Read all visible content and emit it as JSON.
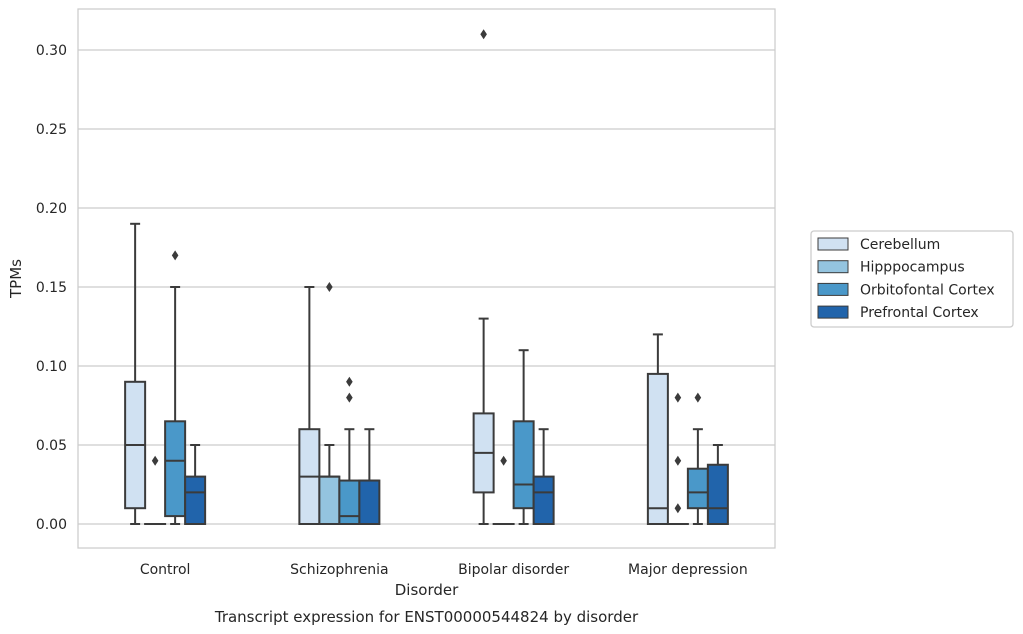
{
  "chart_data": {
    "type": "box",
    "title": "",
    "caption": "Transcript expression for ENST00000544824 by disorder",
    "xlabel": "Disorder",
    "ylabel": "TPMs",
    "ylim": [
      -0.015,
      0.325
    ],
    "yticks": [
      "0.00",
      "0.05",
      "0.10",
      "0.15",
      "0.20",
      "0.25",
      "0.30"
    ],
    "ytick_values": [
      0.0,
      0.05,
      0.1,
      0.15,
      0.2,
      0.25,
      0.3
    ],
    "grid": true,
    "legend_position": "right",
    "categories": [
      "Control",
      "Schizophrenia",
      "Bipolar disorder",
      "Major depression"
    ],
    "series": [
      {
        "name": "Cerebellum",
        "color": "#d0e1f2",
        "boxes": [
          {
            "min": 0.0,
            "q1": 0.01,
            "median": 0.05,
            "q3": 0.09,
            "max": 0.19,
            "outliers": []
          },
          {
            "min": 0.0,
            "q1": 0.0,
            "median": 0.03,
            "q3": 0.06,
            "max": 0.15,
            "outliers": []
          },
          {
            "min": 0.0,
            "q1": 0.02,
            "median": 0.045,
            "q3": 0.07,
            "max": 0.13,
            "outliers": [
              0.31
            ]
          },
          {
            "min": 0.0,
            "q1": 0.0,
            "median": 0.01,
            "q3": 0.095,
            "max": 0.12,
            "outliers": []
          }
        ]
      },
      {
        "name": "Hipppocampus",
        "color": "#94c4df",
        "boxes": [
          {
            "min": 0.0,
            "q1": 0.0,
            "median": 0.0,
            "q3": 0.0,
            "max": 0.0,
            "outliers": [
              0.04
            ]
          },
          {
            "min": 0.0,
            "q1": 0.0,
            "median": 0.03,
            "q3": 0.03,
            "max": 0.05,
            "outliers": [
              0.15
            ]
          },
          {
            "min": 0.0,
            "q1": 0.0,
            "median": 0.0,
            "q3": 0.0,
            "max": 0.0,
            "outliers": [
              0.04
            ]
          },
          {
            "min": 0.0,
            "q1": 0.0,
            "median": 0.0,
            "q3": 0.0,
            "max": 0.0,
            "outliers": [
              0.01,
              0.04,
              0.08
            ]
          }
        ]
      },
      {
        "name": "Orbitofontal Cortex",
        "color": "#4a98c9",
        "boxes": [
          {
            "min": 0.0,
            "q1": 0.005,
            "median": 0.04,
            "q3": 0.065,
            "max": 0.15,
            "outliers": [
              0.17
            ]
          },
          {
            "min": 0.0,
            "q1": 0.0,
            "median": 0.005,
            "q3": 0.0275,
            "max": 0.06,
            "outliers": [
              0.08,
              0.09
            ]
          },
          {
            "min": 0.0,
            "q1": 0.01,
            "median": 0.025,
            "q3": 0.065,
            "max": 0.11,
            "outliers": []
          },
          {
            "min": 0.0,
            "q1": 0.01,
            "median": 0.02,
            "q3": 0.035,
            "max": 0.06,
            "outliers": [
              0.08
            ]
          }
        ]
      },
      {
        "name": "Prefrontal Cortex",
        "color": "#2164ab",
        "boxes": [
          {
            "min": 0.0,
            "q1": 0.0,
            "median": 0.02,
            "q3": 0.03,
            "max": 0.05,
            "outliers": []
          },
          {
            "min": 0.0,
            "q1": 0.0,
            "median": 0.0275,
            "q3": 0.0275,
            "max": 0.06,
            "outliers": []
          },
          {
            "min": 0.0,
            "q1": 0.0,
            "median": 0.02,
            "q3": 0.03,
            "max": 0.06,
            "outliers": []
          },
          {
            "min": 0.0,
            "q1": 0.0,
            "median": 0.01,
            "q3": 0.0375,
            "max": 0.05,
            "outliers": []
          }
        ]
      }
    ]
  }
}
